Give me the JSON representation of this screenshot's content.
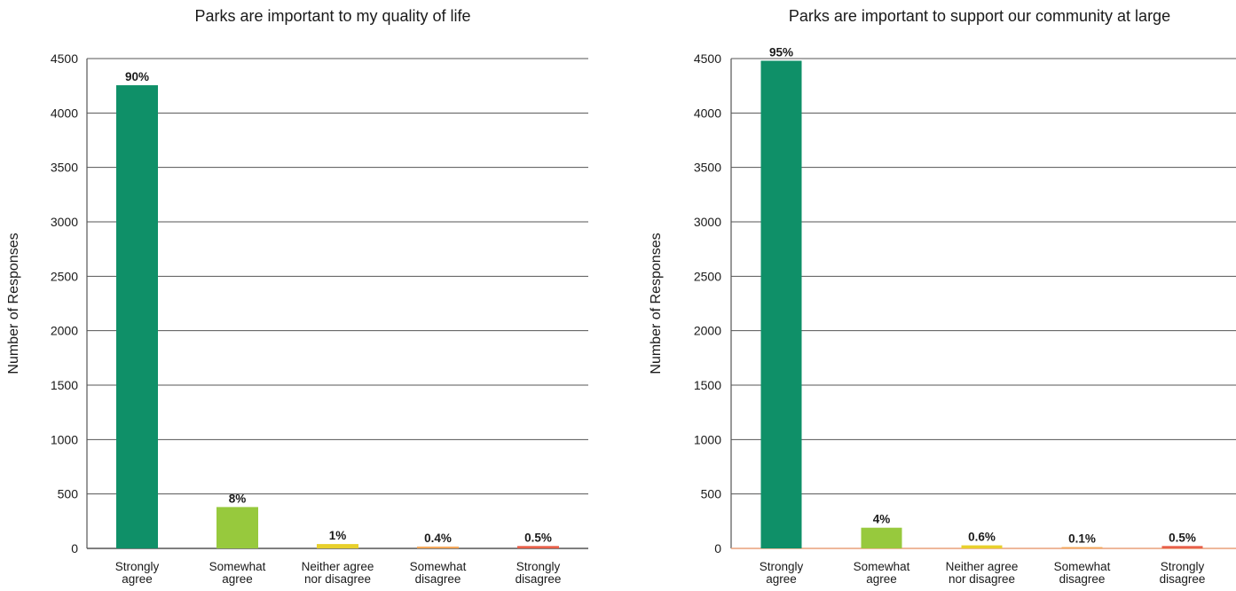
{
  "chart_data": [
    {
      "type": "bar",
      "title": "Parks are important to my quality of life",
      "ylabel": "Number of Responses",
      "xlabel": "",
      "ylim": [
        0,
        4500
      ],
      "yticks": [
        0,
        500,
        1000,
        1500,
        2000,
        2500,
        3000,
        3500,
        4000,
        4500
      ],
      "grid": true,
      "categories": [
        [
          "Strongly",
          "agree"
        ],
        [
          "Somewhat",
          "agree"
        ],
        [
          "Neither agree",
          "nor disagree"
        ],
        [
          "Somewhat",
          "disagree"
        ],
        [
          "Strongly",
          "disagree"
        ]
      ],
      "values": [
        4255,
        380,
        40,
        17,
        22
      ],
      "labels": [
        "90%",
        "8%",
        "1%",
        "0.4%",
        "0.5%"
      ],
      "colors": [
        "#0f9068",
        "#97c93d",
        "#e8d02c",
        "#f3a85c",
        "#e8604a"
      ]
    },
    {
      "type": "bar",
      "title": "Parks are important to support our community at large",
      "ylabel": "Number of Responses",
      "xlabel": "",
      "ylim": [
        0,
        4500
      ],
      "yticks": [
        0,
        500,
        1000,
        1500,
        2000,
        2500,
        3000,
        3500,
        4000,
        4500
      ],
      "grid": true,
      "categories": [
        [
          "Strongly",
          "agree"
        ],
        [
          "Somewhat",
          "agree"
        ],
        [
          "Neither agree",
          "nor disagree"
        ],
        [
          "Somewhat",
          "disagree"
        ],
        [
          "Strongly",
          "disagree"
        ]
      ],
      "values": [
        4480,
        190,
        28,
        5,
        22
      ],
      "labels": [
        "95%",
        "4%",
        "0.6%",
        "0.1%",
        "0.5%"
      ],
      "colors": [
        "#0f9068",
        "#97c93d",
        "#e8d02c",
        "#f3a85c",
        "#e8604a"
      ],
      "baseline_color": "#e8a07a"
    }
  ]
}
